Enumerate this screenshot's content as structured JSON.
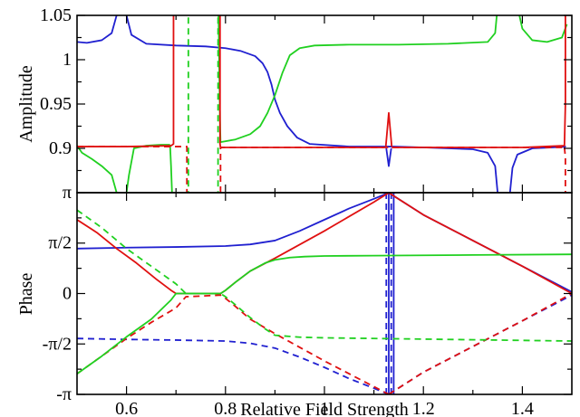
{
  "chart_data": [
    {
      "type": "line",
      "panel": "top",
      "ylabel": "Amplitude",
      "xlabel": "",
      "xlim": [
        0.5,
        1.5
      ],
      "ylim": [
        0.85,
        1.05
      ],
      "yticks": [
        0.9,
        0.95,
        1,
        1.05
      ],
      "ytick_labels": [
        "0.9",
        "0.95",
        "1",
        "1.05"
      ],
      "legend": "none",
      "grid": false,
      "series": [
        {
          "color": "#2020d0",
          "dash": "solid",
          "segments": [
            {
              "x": [
                0.5,
                0.52,
                0.55,
                0.57,
                0.585
              ],
              "y": [
                1.02,
                1.019,
                1.022,
                1.03,
                1.06
              ]
            },
            {
              "x": [
                0.6,
                0.61,
                0.64,
                0.7,
                0.76,
                0.8,
                0.83,
                0.86,
                0.875,
                0.885,
                0.893,
                0.9,
                0.91,
                0.925,
                0.945,
                0.97,
                1.05,
                1.12,
                1.13,
                1.14,
                1.2,
                1.3,
                1.33,
                1.345,
                1.35
              ],
              "y": [
                1.05,
                1.028,
                1.018,
                1.016,
                1.015,
                1.013,
                1.01,
                1.004,
                0.996,
                0.986,
                0.972,
                0.955,
                0.94,
                0.925,
                0.912,
                0.905,
                0.902,
                0.902,
                0.902,
                0.902,
                0.901,
                0.899,
                0.895,
                0.88,
                0.85
              ]
            },
            {
              "x": [
                1.125,
                1.13,
                1.135
              ],
              "y": [
                0.9,
                0.88,
                0.9
              ]
            },
            {
              "x": [
                1.375,
                1.38,
                1.39,
                1.42,
                1.46,
                1.488
              ],
              "y": [
                0.85,
                0.878,
                0.893,
                0.9,
                0.901,
                0.902
              ]
            }
          ]
        },
        {
          "color": "#20d020",
          "dash": "solid",
          "segments": [
            {
              "x": [
                0.5,
                0.51,
                0.53,
                0.55,
                0.57,
                0.58
              ],
              "y": [
                0.903,
                0.895,
                0.888,
                0.88,
                0.87,
                0.85
              ]
            },
            {
              "x": [
                0.6,
                0.605,
                0.615,
                0.64,
                0.67,
                0.685,
                0.688
              ],
              "y": [
                0.85,
                0.87,
                0.9,
                0.903,
                0.904,
                0.904,
                0.904
              ]
            },
            {
              "x": [
                0.688,
                0.69,
                0.692
              ],
              "y": [
                0.904,
                0.88,
                0.85
              ]
            },
            {
              "x": [
                0.786,
                0.788,
                0.789,
                0.79
              ],
              "y": [
                1.05,
                0.97,
                0.93,
                0.907
              ]
            },
            {
              "x": [
                0.79,
                0.82,
                0.85,
                0.87,
                0.885,
                0.9,
                0.915,
                0.93,
                0.95,
                0.98,
                1.05,
                1.15,
                1.25,
                1.33,
                1.345,
                1.35
              ],
              "y": [
                0.907,
                0.91,
                0.916,
                0.925,
                0.94,
                0.96,
                0.985,
                1.005,
                1.013,
                1.016,
                1.017,
                1.017,
                1.018,
                1.02,
                1.03,
                1.06
              ]
            },
            {
              "x": [
                1.39,
                1.4,
                1.42,
                1.45,
                1.48,
                1.49
              ],
              "y": [
                1.06,
                1.035,
                1.022,
                1.02,
                1.025,
                1.04
              ]
            }
          ]
        },
        {
          "color": "#e01010",
          "dash": "solid",
          "segments": [
            {
              "x": [
                0.5,
                0.6,
                0.69,
                0.695,
                0.695
              ],
              "y": [
                0.902,
                0.902,
                0.903,
                0.905,
                1.06
              ]
            },
            {
              "x": [
                0.789,
                0.789,
                0.79,
                0.8,
                0.9,
                1.0,
                1.12
              ],
              "y": [
                1.06,
                0.905,
                0.901,
                0.901,
                0.901,
                0.901,
                0.901
              ]
            },
            {
              "x": [
                1.124,
                1.13,
                1.136
              ],
              "y": [
                0.902,
                0.94,
                0.902
              ]
            },
            {
              "x": [
                1.136,
                1.2,
                1.3,
                1.4,
                1.485,
                1.487,
                1.487
              ],
              "y": [
                0.901,
                0.901,
                0.901,
                0.901,
                0.903,
                0.95,
                1.06
              ]
            }
          ]
        },
        {
          "color": "#e01010",
          "dash": "dashed",
          "segments": [
            {
              "x": [
                0.5,
                0.6,
                0.7,
                0.722,
                0.722
              ],
              "y": [
                0.902,
                0.902,
                0.902,
                0.902,
                0.85
              ]
            },
            {
              "x": [
                0.79,
                0.79,
                0.8,
                0.9,
                1.0,
                1.12,
                1.2,
                1.3,
                1.4,
                1.485
              ],
              "y": [
                0.85,
                0.901,
                0.901,
                0.901,
                0.901,
                0.901,
                0.901,
                0.901,
                0.901,
                0.901
              ]
            },
            {
              "x": [
                1.485,
                1.487,
                1.487
              ],
              "y": [
                0.901,
                0.89,
                0.85
              ]
            }
          ]
        },
        {
          "color": "#20d020",
          "dash": "dashed",
          "segments": [
            {
              "x": [
                0.725,
                0.725
              ],
              "y": [
                1.06,
                0.85
              ]
            },
            {
              "x": [
                0.785,
                0.785
              ],
              "y": [
                1.06,
                0.85
              ]
            }
          ]
        }
      ]
    },
    {
      "type": "line",
      "panel": "bottom",
      "ylabel": "Phase",
      "xlabel": "Relative Field Strength",
      "xlim": [
        0.5,
        1.5
      ],
      "ylim": [
        -3.14159,
        3.14159
      ],
      "xticks": [
        0.6,
        0.8,
        1,
        1.2,
        1.4
      ],
      "xtick_labels": [
        "0.6",
        "0.8",
        "1",
        "1.2",
        "1.4"
      ],
      "yticks": [
        -3.14159,
        -1.5708,
        0,
        1.5708,
        3.14159
      ],
      "ytick_labels": [
        "-π",
        "-π/2",
        "0",
        "π/2",
        "π"
      ],
      "legend": "none",
      "grid": false,
      "series": [
        {
          "color": "#2020d0",
          "dash": "solid",
          "segments": [
            {
              "x": [
                0.5,
                0.6,
                0.7,
                0.8,
                0.85,
                0.9,
                0.95,
                1.0,
                1.05,
                1.1,
                1.13
              ],
              "y": [
                1.4,
                1.43,
                1.45,
                1.48,
                1.53,
                1.65,
                1.95,
                2.3,
                2.65,
                2.95,
                3.14
              ]
            },
            {
              "x": [
                1.13,
                1.2,
                1.3,
                1.4,
                1.45,
                1.5
              ],
              "y": [
                3.14,
                2.45,
                1.65,
                0.85,
                0.45,
                0.05
              ]
            },
            {
              "x": [
                1.13,
                1.13
              ],
              "y": [
                3.14,
                -3.14
              ]
            },
            {
              "x": [
                1.14,
                1.14
              ],
              "y": [
                3.14,
                -3.14
              ]
            }
          ]
        },
        {
          "color": "#2020d0",
          "dash": "dashed",
          "segments": [
            {
              "x": [
                0.5,
                0.6,
                0.7,
                0.8,
                0.85,
                0.9,
                0.95,
                1.0,
                1.05,
                1.1,
                1.13
              ],
              "y": [
                -1.4,
                -1.43,
                -1.45,
                -1.48,
                -1.55,
                -1.7,
                -1.98,
                -2.3,
                -2.65,
                -2.95,
                -3.14
              ]
            },
            {
              "x": [
                1.13,
                1.2,
                1.3,
                1.4,
                1.45,
                1.5
              ],
              "y": [
                -3.14,
                -2.45,
                -1.65,
                -0.85,
                -0.45,
                -0.05
              ]
            },
            {
              "x": [
                1.125,
                1.125
              ],
              "y": [
                -3.14,
                3.14
              ]
            },
            {
              "x": [
                1.135,
                1.135
              ],
              "y": [
                -3.14,
                3.14
              ]
            }
          ]
        },
        {
          "color": "#e01010",
          "dash": "solid",
          "segments": [
            {
              "x": [
                0.5,
                0.54,
                0.58,
                0.62,
                0.66,
                0.69,
                0.7,
                0.72,
                0.75,
                0.79,
                0.8,
                0.82,
                0.85,
                0.9,
                1.0,
                1.1,
                1.13
              ],
              "y": [
                2.3,
                1.9,
                1.4,
                0.95,
                0.45,
                0.1,
                0.0,
                0.0,
                0.0,
                0.0,
                0.1,
                0.35,
                0.7,
                1.1,
                1.95,
                2.85,
                3.14
              ]
            },
            {
              "x": [
                1.13,
                1.2,
                1.3,
                1.4,
                1.5
              ],
              "y": [
                3.14,
                2.45,
                1.65,
                0.85,
                0.0
              ]
            }
          ]
        },
        {
          "color": "#e01010",
          "dash": "dashed",
          "segments": [
            {
              "x": [
                0.5,
                0.55,
                0.6,
                0.65,
                0.7,
                0.72,
                0.79,
                0.8,
                0.82,
                0.85,
                0.9,
                1.0,
                1.1,
                1.13
              ],
              "y": [
                -2.5,
                -1.95,
                -1.4,
                -0.9,
                -0.45,
                -0.1,
                -0.05,
                -0.15,
                -0.4,
                -0.8,
                -1.25,
                -2.1,
                -2.9,
                -3.14
              ]
            },
            {
              "x": [
                1.13,
                1.2,
                1.3,
                1.4,
                1.5
              ],
              "y": [
                -3.14,
                -2.45,
                -1.65,
                -0.85,
                0.0
              ]
            }
          ]
        },
        {
          "color": "#20d020",
          "dash": "solid",
          "segments": [
            {
              "x": [
                0.5,
                0.55,
                0.6,
                0.65,
                0.69,
                0.7,
                0.72,
                0.79,
                0.8,
                0.82,
                0.85,
                0.88,
                0.9,
                0.93,
                0.96,
                1.0,
                1.1,
                1.3,
                1.5
              ],
              "y": [
                -2.5,
                -1.95,
                -1.35,
                -0.8,
                -0.2,
                0.0,
                0.0,
                0.0,
                0.1,
                0.35,
                0.7,
                0.95,
                1.05,
                1.12,
                1.15,
                1.17,
                1.18,
                1.2,
                1.22
              ]
            }
          ]
        },
        {
          "color": "#20d020",
          "dash": "dashed",
          "segments": [
            {
              "x": [
                0.5,
                0.55,
                0.6,
                0.65,
                0.7,
                0.72,
                0.79,
                0.8,
                0.82,
                0.85,
                0.88,
                0.9,
                0.95,
                1.0,
                1.2,
                1.5
              ],
              "y": [
                2.6,
                2.05,
                1.4,
                0.85,
                0.3,
                0.0,
                0.0,
                -0.1,
                -0.35,
                -0.75,
                -1.1,
                -1.3,
                -1.36,
                -1.38,
                -1.42,
                -1.48
              ]
            }
          ]
        }
      ]
    }
  ]
}
